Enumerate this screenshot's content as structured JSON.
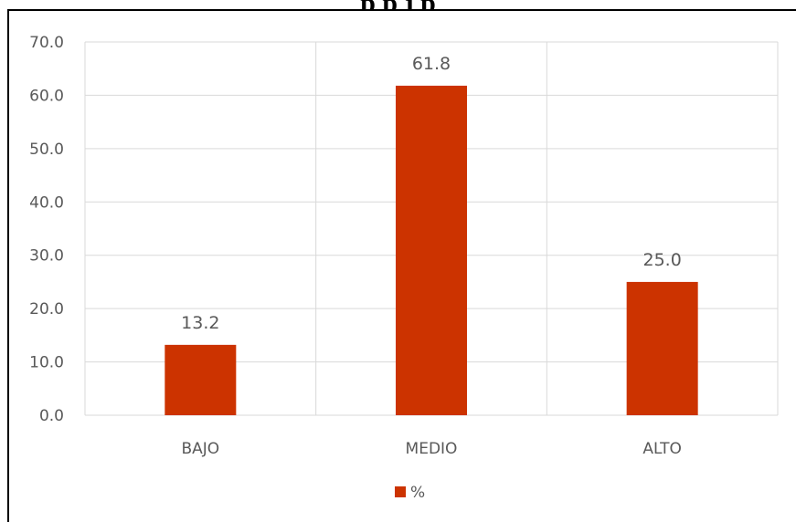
{
  "title_fragment": "p                                    p                                    j                p",
  "chart_data": {
    "type": "bar",
    "categories": [
      "BAJO",
      "MEDIO",
      "ALTO"
    ],
    "series": [
      {
        "name": "%",
        "values": [
          13.2,
          61.8,
          25.0
        ],
        "color": "#CC3300"
      }
    ],
    "data_labels": [
      "13.2",
      "61.8",
      "25.0"
    ],
    "ylim": [
      0,
      70
    ],
    "yticks": [
      0.0,
      10.0,
      20.0,
      30.0,
      40.0,
      50.0,
      60.0,
      70.0
    ],
    "ytick_labels": [
      "0.0",
      "10.0",
      "20.0",
      "30.0",
      "40.0",
      "50.0",
      "60.0",
      "70.0"
    ],
    "xlabel": "",
    "ylabel": "",
    "grid": true,
    "legend_position": "bottom",
    "colors": {
      "bar": "#CC3300",
      "grid": "#D9D9D9",
      "text": "#595959"
    }
  }
}
